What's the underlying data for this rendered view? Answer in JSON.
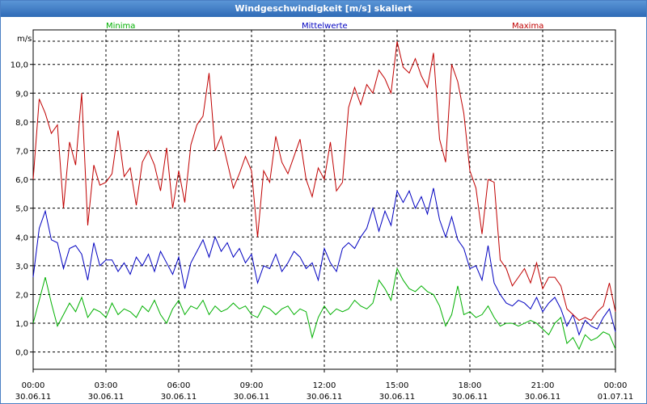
{
  "window": {
    "title": "Windgeschwindigkeit [m/s] skaliert"
  },
  "chart_data": {
    "type": "line",
    "ylabel": "m/s",
    "ylim": [
      -0.6,
      11.2
    ],
    "y_ticks": [
      0,
      1,
      2,
      3,
      4,
      5,
      6,
      7,
      8,
      9,
      10
    ],
    "y_tick_labels": [
      "0,0",
      "1,0",
      "2,0",
      "3,0",
      "4,0",
      "5,0",
      "6,0",
      "7,0",
      "8,0",
      "9,0",
      "10,0"
    ],
    "x_ticks": [
      {
        "time": "00:00",
        "date": "30.06.11"
      },
      {
        "time": "03:00",
        "date": "30.06.11"
      },
      {
        "time": "06:00",
        "date": "30.06.11"
      },
      {
        "time": "09:00",
        "date": "30.06.11"
      },
      {
        "time": "12:00",
        "date": "30.06.11"
      },
      {
        "time": "15:00",
        "date": "30.06.11"
      },
      {
        "time": "18:00",
        "date": "30.06.11"
      },
      {
        "time": "21:00",
        "date": "30.06.11"
      },
      {
        "time": "00:00",
        "date": "01.07.11"
      }
    ],
    "x_hours": [
      0,
      24
    ],
    "grid": true,
    "legend_position": "top",
    "series": [
      {
        "name": "Minima",
        "color": "#00b000",
        "points": [
          [
            0,
            1.0
          ],
          [
            0.25,
            1.8
          ],
          [
            0.5,
            2.6
          ],
          [
            0.75,
            1.7
          ],
          [
            1.0,
            0.9
          ],
          [
            1.25,
            1.3
          ],
          [
            1.5,
            1.7
          ],
          [
            1.75,
            1.4
          ],
          [
            2.0,
            1.9
          ],
          [
            2.25,
            1.2
          ],
          [
            2.5,
            1.5
          ],
          [
            2.75,
            1.4
          ],
          [
            3.0,
            1.2
          ],
          [
            3.25,
            1.7
          ],
          [
            3.5,
            1.3
          ],
          [
            3.75,
            1.5
          ],
          [
            4.0,
            1.4
          ],
          [
            4.25,
            1.2
          ],
          [
            4.5,
            1.6
          ],
          [
            4.75,
            1.4
          ],
          [
            5.0,
            1.8
          ],
          [
            5.25,
            1.3
          ],
          [
            5.5,
            1.0
          ],
          [
            5.75,
            1.5
          ],
          [
            6.0,
            1.8
          ],
          [
            6.25,
            1.3
          ],
          [
            6.5,
            1.6
          ],
          [
            6.75,
            1.5
          ],
          [
            7.0,
            1.8
          ],
          [
            7.25,
            1.3
          ],
          [
            7.5,
            1.6
          ],
          [
            7.75,
            1.4
          ],
          [
            8.0,
            1.5
          ],
          [
            8.25,
            1.7
          ],
          [
            8.5,
            1.5
          ],
          [
            8.75,
            1.6
          ],
          [
            9.0,
            1.3
          ],
          [
            9.25,
            1.2
          ],
          [
            9.5,
            1.6
          ],
          [
            9.75,
            1.5
          ],
          [
            10.0,
            1.3
          ],
          [
            10.25,
            1.5
          ],
          [
            10.5,
            1.6
          ],
          [
            10.75,
            1.3
          ],
          [
            11.0,
            1.5
          ],
          [
            11.25,
            1.4
          ],
          [
            11.5,
            0.5
          ],
          [
            11.75,
            1.2
          ],
          [
            12.0,
            1.6
          ],
          [
            12.25,
            1.3
          ],
          [
            12.5,
            1.5
          ],
          [
            12.75,
            1.4
          ],
          [
            13.0,
            1.5
          ],
          [
            13.25,
            1.8
          ],
          [
            13.5,
            1.6
          ],
          [
            13.75,
            1.5
          ],
          [
            14.0,
            1.7
          ],
          [
            14.25,
            2.5
          ],
          [
            14.5,
            2.2
          ],
          [
            14.75,
            1.8
          ],
          [
            15.0,
            2.9
          ],
          [
            15.25,
            2.5
          ],
          [
            15.5,
            2.2
          ],
          [
            15.75,
            2.1
          ],
          [
            16.0,
            2.3
          ],
          [
            16.25,
            2.1
          ],
          [
            16.5,
            2.0
          ],
          [
            16.75,
            1.6
          ],
          [
            17.0,
            0.9
          ],
          [
            17.25,
            1.3
          ],
          [
            17.5,
            2.3
          ],
          [
            17.75,
            1.3
          ],
          [
            18.0,
            1.4
          ],
          [
            18.25,
            1.2
          ],
          [
            18.5,
            1.3
          ],
          [
            18.75,
            1.6
          ],
          [
            19.0,
            1.2
          ],
          [
            19.25,
            0.9
          ],
          [
            19.5,
            1.0
          ],
          [
            19.75,
            1.0
          ],
          [
            20.0,
            0.9
          ],
          [
            20.25,
            1.0
          ],
          [
            20.5,
            1.1
          ],
          [
            20.75,
            1.0
          ],
          [
            21.0,
            0.8
          ],
          [
            21.25,
            0.6
          ],
          [
            21.5,
            1.0
          ],
          [
            21.75,
            1.2
          ],
          [
            22.0,
            0.3
          ],
          [
            22.25,
            0.5
          ],
          [
            22.5,
            0.1
          ],
          [
            22.75,
            0.6
          ],
          [
            23.0,
            0.4
          ],
          [
            23.25,
            0.5
          ],
          [
            23.5,
            0.7
          ],
          [
            23.75,
            0.6
          ],
          [
            24.0,
            0.1
          ]
        ]
      },
      {
        "name": "Mittelwerte",
        "color": "#0000c0",
        "points": [
          [
            0,
            2.6
          ],
          [
            0.25,
            4.3
          ],
          [
            0.5,
            4.9
          ],
          [
            0.75,
            3.9
          ],
          [
            1.0,
            3.8
          ],
          [
            1.25,
            2.9
          ],
          [
            1.5,
            3.6
          ],
          [
            1.75,
            3.7
          ],
          [
            2.0,
            3.4
          ],
          [
            2.25,
            2.5
          ],
          [
            2.5,
            3.8
          ],
          [
            2.75,
            3.0
          ],
          [
            3.0,
            3.2
          ],
          [
            3.25,
            3.2
          ],
          [
            3.5,
            2.8
          ],
          [
            3.75,
            3.1
          ],
          [
            4.0,
            2.7
          ],
          [
            4.25,
            3.3
          ],
          [
            4.5,
            3.0
          ],
          [
            4.75,
            3.4
          ],
          [
            5.0,
            2.8
          ],
          [
            5.25,
            3.5
          ],
          [
            5.5,
            3.1
          ],
          [
            5.75,
            2.7
          ],
          [
            6.0,
            3.3
          ],
          [
            6.25,
            2.2
          ],
          [
            6.5,
            3.1
          ],
          [
            6.75,
            3.5
          ],
          [
            7.0,
            3.9
          ],
          [
            7.25,
            3.3
          ],
          [
            7.5,
            4.0
          ],
          [
            7.75,
            3.5
          ],
          [
            8.0,
            3.8
          ],
          [
            8.25,
            3.3
          ],
          [
            8.5,
            3.6
          ],
          [
            8.75,
            3.1
          ],
          [
            9.0,
            3.4
          ],
          [
            9.25,
            2.4
          ],
          [
            9.5,
            3.0
          ],
          [
            9.75,
            2.9
          ],
          [
            10.0,
            3.4
          ],
          [
            10.25,
            2.8
          ],
          [
            10.5,
            3.1
          ],
          [
            10.75,
            3.5
          ],
          [
            11.0,
            3.3
          ],
          [
            11.25,
            2.9
          ],
          [
            11.5,
            3.1
          ],
          [
            11.75,
            2.5
          ],
          [
            12.0,
            3.6
          ],
          [
            12.25,
            3.1
          ],
          [
            12.5,
            2.8
          ],
          [
            12.75,
            3.6
          ],
          [
            13.0,
            3.8
          ],
          [
            13.25,
            3.6
          ],
          [
            13.5,
            4.0
          ],
          [
            13.75,
            4.3
          ],
          [
            14.0,
            5.0
          ],
          [
            14.25,
            4.2
          ],
          [
            14.5,
            4.9
          ],
          [
            14.75,
            4.4
          ],
          [
            15.0,
            5.6
          ],
          [
            15.25,
            5.2
          ],
          [
            15.5,
            5.6
          ],
          [
            15.75,
            5.0
          ],
          [
            16.0,
            5.4
          ],
          [
            16.25,
            4.8
          ],
          [
            16.5,
            5.7
          ],
          [
            16.75,
            4.6
          ],
          [
            17.0,
            4.0
          ],
          [
            17.25,
            4.7
          ],
          [
            17.5,
            3.9
          ],
          [
            17.75,
            3.6
          ],
          [
            18.0,
            2.9
          ],
          [
            18.25,
            3.0
          ],
          [
            18.5,
            2.5
          ],
          [
            18.75,
            3.7
          ],
          [
            19.0,
            2.4
          ],
          [
            19.25,
            2.0
          ],
          [
            19.5,
            1.7
          ],
          [
            19.75,
            1.6
          ],
          [
            20.0,
            1.8
          ],
          [
            20.25,
            1.7
          ],
          [
            20.5,
            1.5
          ],
          [
            20.75,
            1.9
          ],
          [
            21.0,
            1.4
          ],
          [
            21.25,
            1.7
          ],
          [
            21.5,
            1.9
          ],
          [
            21.75,
            1.5
          ],
          [
            22.0,
            0.9
          ],
          [
            22.25,
            1.3
          ],
          [
            22.5,
            0.6
          ],
          [
            22.75,
            1.1
          ],
          [
            23.0,
            0.9
          ],
          [
            23.25,
            0.8
          ],
          [
            23.5,
            1.2
          ],
          [
            23.75,
            1.5
          ],
          [
            24.0,
            0.7
          ]
        ]
      },
      {
        "name": "Maxima",
        "color": "#c00000",
        "points": [
          [
            0,
            6.0
          ],
          [
            0.25,
            8.8
          ],
          [
            0.5,
            8.3
          ],
          [
            0.75,
            7.6
          ],
          [
            1.0,
            7.9
          ],
          [
            1.25,
            5.0
          ],
          [
            1.5,
            7.3
          ],
          [
            1.75,
            6.5
          ],
          [
            2.0,
            9.0
          ],
          [
            2.25,
            4.4
          ],
          [
            2.5,
            6.5
          ],
          [
            2.75,
            5.8
          ],
          [
            3.0,
            5.9
          ],
          [
            3.25,
            6.2
          ],
          [
            3.5,
            7.7
          ],
          [
            3.75,
            6.1
          ],
          [
            4.0,
            6.4
          ],
          [
            4.25,
            5.1
          ],
          [
            4.5,
            6.6
          ],
          [
            4.75,
            7.0
          ],
          [
            5.0,
            6.5
          ],
          [
            5.25,
            5.6
          ],
          [
            5.5,
            7.1
          ],
          [
            5.75,
            5.0
          ],
          [
            6.0,
            6.3
          ],
          [
            6.25,
            5.2
          ],
          [
            6.5,
            7.2
          ],
          [
            6.75,
            7.9
          ],
          [
            7.0,
            8.2
          ],
          [
            7.25,
            9.7
          ],
          [
            7.5,
            7.0
          ],
          [
            7.75,
            7.5
          ],
          [
            8.0,
            6.6
          ],
          [
            8.25,
            5.7
          ],
          [
            8.5,
            6.2
          ],
          [
            8.75,
            6.8
          ],
          [
            9.0,
            6.3
          ],
          [
            9.25,
            4.0
          ],
          [
            9.5,
            6.3
          ],
          [
            9.75,
            5.9
          ],
          [
            10.0,
            7.5
          ],
          [
            10.25,
            6.6
          ],
          [
            10.5,
            6.2
          ],
          [
            10.75,
            6.8
          ],
          [
            11.0,
            7.4
          ],
          [
            11.25,
            6.0
          ],
          [
            11.5,
            5.4
          ],
          [
            11.75,
            6.4
          ],
          [
            12.0,
            6.0
          ],
          [
            12.25,
            7.3
          ],
          [
            12.5,
            5.6
          ],
          [
            12.75,
            5.9
          ],
          [
            13.0,
            8.5
          ],
          [
            13.25,
            9.2
          ],
          [
            13.5,
            8.6
          ],
          [
            13.75,
            9.3
          ],
          [
            14.0,
            9.0
          ],
          [
            14.25,
            9.8
          ],
          [
            14.5,
            9.5
          ],
          [
            14.75,
            9.0
          ],
          [
            15.0,
            10.8
          ],
          [
            15.25,
            9.9
          ],
          [
            15.5,
            9.7
          ],
          [
            15.75,
            10.2
          ],
          [
            16.0,
            9.6
          ],
          [
            16.25,
            9.2
          ],
          [
            16.5,
            10.4
          ],
          [
            16.75,
            7.4
          ],
          [
            17.0,
            6.6
          ],
          [
            17.25,
            10.0
          ],
          [
            17.5,
            9.4
          ],
          [
            17.75,
            8.3
          ],
          [
            18.0,
            6.3
          ],
          [
            18.25,
            5.7
          ],
          [
            18.5,
            4.1
          ],
          [
            18.75,
            6.0
          ],
          [
            19.0,
            5.9
          ],
          [
            19.25,
            3.2
          ],
          [
            19.5,
            2.9
          ],
          [
            19.75,
            2.3
          ],
          [
            20.0,
            2.6
          ],
          [
            20.25,
            2.9
          ],
          [
            20.5,
            2.4
          ],
          [
            20.75,
            3.1
          ],
          [
            21.0,
            2.2
          ],
          [
            21.25,
            2.6
          ],
          [
            21.5,
            2.6
          ],
          [
            21.75,
            2.3
          ],
          [
            22.0,
            1.5
          ],
          [
            22.25,
            1.3
          ],
          [
            22.5,
            1.1
          ],
          [
            22.75,
            1.2
          ],
          [
            23.0,
            1.1
          ],
          [
            23.25,
            1.4
          ],
          [
            23.5,
            1.6
          ],
          [
            23.75,
            2.4
          ],
          [
            24.0,
            1.4
          ]
        ]
      }
    ]
  }
}
